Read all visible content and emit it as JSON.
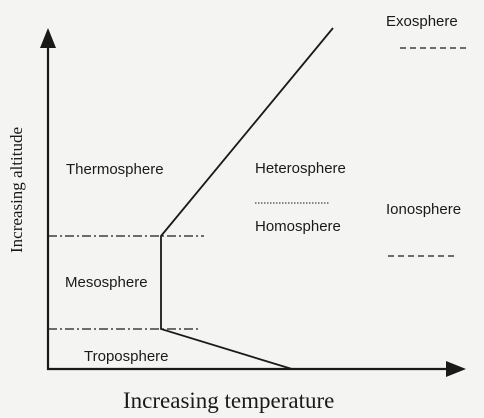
{
  "diagram": {
    "axes": {
      "x_label": "Increasing temperature",
      "y_label": "Increasing altitude"
    },
    "layers_left": {
      "thermosphere": "Thermosphere",
      "mesosphere": "Mesosphere",
      "troposphere": "Troposphere"
    },
    "composition": {
      "upper": "Heterosphere",
      "lower": "Homosphere"
    },
    "right_regions": {
      "top": "Exosphere",
      "middle": "Ionosphere"
    },
    "colors": {
      "ink": "#1a1a1a",
      "background": "#f4f4f2"
    }
  }
}
